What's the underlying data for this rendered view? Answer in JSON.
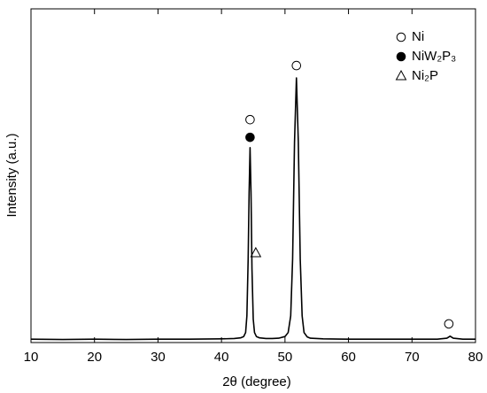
{
  "chart_data": {
    "type": "line",
    "xlabel": "2θ (degree)",
    "ylabel": "Intensity (a.u.)",
    "xlim": [
      10,
      80
    ],
    "xticks": [
      10,
      20,
      30,
      40,
      50,
      60,
      70,
      80
    ],
    "ylim": [
      0,
      100
    ],
    "series": [
      {
        "color": "#000000",
        "x": [
          10,
          15,
          20,
          25,
          30,
          35,
          40,
          42,
          43,
          43.5,
          43.8,
          44.0,
          44.2,
          44.35,
          44.5,
          44.65,
          44.8,
          45.0,
          45.2,
          45.5,
          46,
          47,
          48,
          49,
          50,
          50.5,
          50.9,
          51.2,
          51.5,
          51.8,
          52.1,
          52.4,
          52.7,
          53,
          53.5,
          54,
          56,
          60,
          65,
          70,
          74,
          75.5,
          76,
          76.5,
          78,
          80
        ],
        "values": [
          1.0,
          0.9,
          1.0,
          0.9,
          1.0,
          1.0,
          1.1,
          1.2,
          1.4,
          1.8,
          3,
          8,
          25,
          45,
          58.4,
          45,
          22,
          7,
          3,
          1.8,
          1.4,
          1.2,
          1.2,
          1.3,
          1.8,
          3,
          8,
          25,
          60,
          79.3,
          60,
          25,
          8,
          3,
          1.7,
          1.3,
          1.1,
          1.0,
          1.0,
          1.0,
          1.0,
          1.3,
          1.9,
          1.3,
          1.0,
          1.0
        ]
      }
    ],
    "phases": [
      {
        "name": "Ni",
        "marker": "open-circle",
        "x": [
          44.5,
          51.8,
          75.8
        ],
        "y": [
          66.8,
          83.0,
          5.6
        ]
      },
      {
        "name": "NiW₂P₃",
        "marker": "filled-circle",
        "x": [
          44.5
        ],
        "y": [
          61.5
        ]
      },
      {
        "name": "Ni₂P",
        "marker": "open-triangle",
        "x": [
          45.4
        ],
        "y": [
          26.8
        ]
      }
    ]
  }
}
